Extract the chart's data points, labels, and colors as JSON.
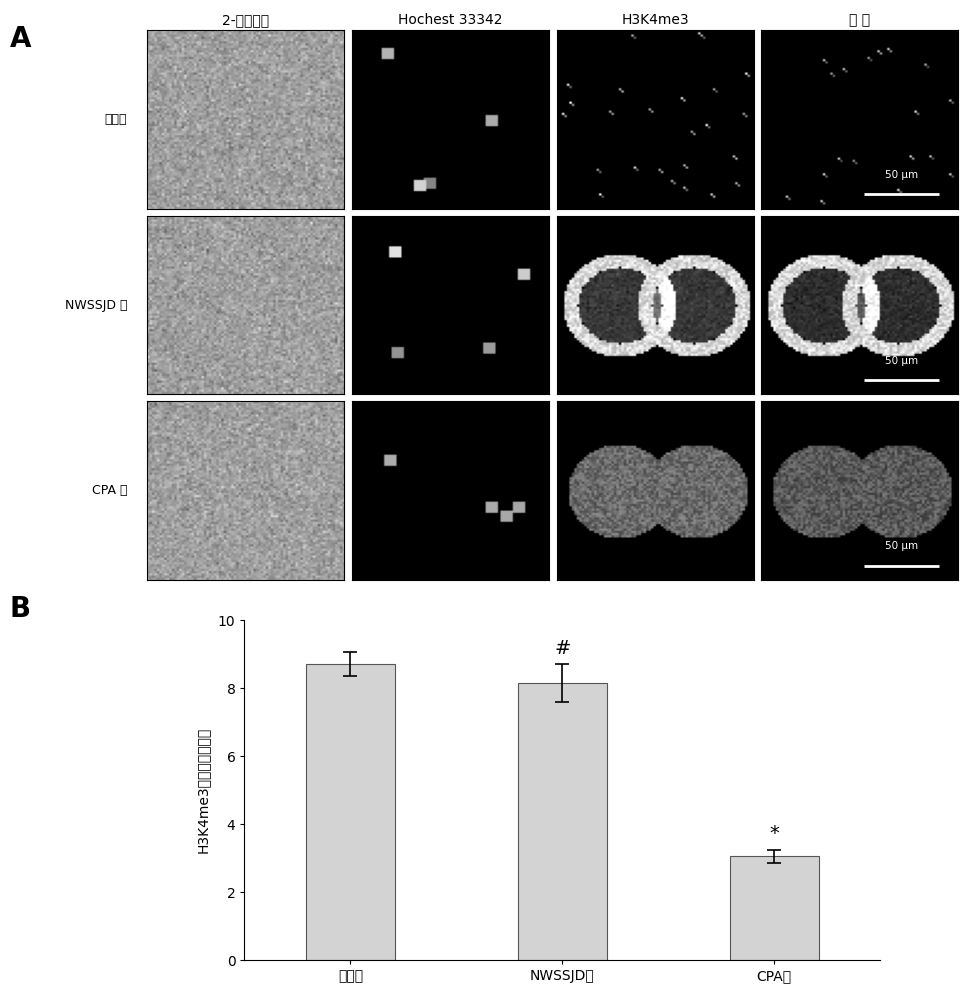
{
  "panel_A_label": "A",
  "panel_B_label": "B",
  "col_headers": [
    "2-细胞胚胸",
    "Hochest 33342",
    "H3K4me3",
    "合 图"
  ],
  "row_labels": [
    "对照组",
    "NWSSJD 组",
    "CPA 组"
  ],
  "bar_categories": [
    "对照组",
    "NWSSJD组",
    "CPA组"
  ],
  "bar_values": [
    8.7,
    8.15,
    3.05
  ],
  "bar_errors": [
    0.35,
    0.55,
    0.2
  ],
  "bar_color": "#d3d3d3",
  "bar_edge_color": "#555555",
  "ylim": [
    0,
    10
  ],
  "yticks": [
    0,
    2,
    4,
    6,
    8,
    10
  ],
  "ylabel": "H3K4me3的平均荧光强度",
  "significance_labels": [
    "",
    "#",
    "*"
  ],
  "scale_bar_text": "50 μm",
  "figure_bg": "#ffffff"
}
